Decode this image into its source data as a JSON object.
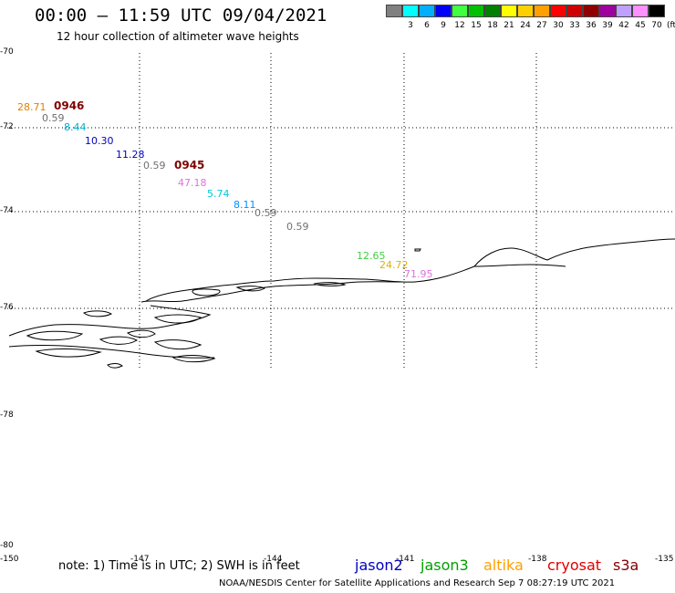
{
  "header": {
    "title": "00:00 – 11:59 UTC 09/04/2021",
    "subtitle": "12 hour collection of altimeter wave heights"
  },
  "legend": {
    "unit": "(ft)",
    "items": [
      {
        "label": "",
        "color": "#808080"
      },
      {
        "label": "3",
        "color": "#00ffff"
      },
      {
        "label": "6",
        "color": "#00b0ff"
      },
      {
        "label": "9",
        "color": "#0000ff"
      },
      {
        "label": "12",
        "color": "#40ff40"
      },
      {
        "label": "15",
        "color": "#00c000"
      },
      {
        "label": "18",
        "color": "#008000"
      },
      {
        "label": "21",
        "color": "#ffff00"
      },
      {
        "label": "24",
        "color": "#ffd000"
      },
      {
        "label": "27",
        "color": "#ffa000"
      },
      {
        "label": "30",
        "color": "#ff0000"
      },
      {
        "label": "33",
        "color": "#d00000"
      },
      {
        "label": "36",
        "color": "#900000"
      },
      {
        "label": "39",
        "color": "#a000a0"
      },
      {
        "label": "42",
        "color": "#c0a0ff"
      },
      {
        "label": "45",
        "color": "#ff90ff"
      },
      {
        "label": "70",
        "color": "#000000"
      }
    ]
  },
  "axes": {
    "lat_labels": [
      "-70",
      "-72",
      "-74",
      "-76",
      "-78",
      "-80"
    ],
    "lon_labels": [
      "-150",
      "-147",
      "-144",
      "-141",
      "-138",
      "-135"
    ]
  },
  "observations": [
    {
      "value": "28.71",
      "color": "#e08000"
    },
    {
      "value": "0.59",
      "color": "#707070"
    },
    {
      "value": "8.44",
      "color": "#00b0d0"
    },
    {
      "value": "10.30",
      "color": "#0000c0"
    },
    {
      "value": "11.28",
      "color": "#0000c0"
    },
    {
      "value": "0.59",
      "color": "#707070"
    },
    {
      "value": "47.18",
      "color": "#e070e0"
    },
    {
      "value": "5.74",
      "color": "#00c8d8"
    },
    {
      "value": "8.11",
      "color": "#0090ff"
    },
    {
      "value": "0.59",
      "color": "#707070"
    },
    {
      "value": "0.59",
      "color": "#707070"
    },
    {
      "value": "12.65",
      "color": "#40d040"
    },
    {
      "value": "24.72",
      "color": "#e0b000"
    },
    {
      "value": "71.95",
      "color": "#e070e0"
    }
  ],
  "time_labels": [
    "0946",
    "0945"
  ],
  "note": "note: 1) Time is in UTC; 2) SWH is in feet",
  "satellites": [
    {
      "name": "jason2",
      "color": "#0000c0"
    },
    {
      "name": "jason3",
      "color": "#00a000"
    },
    {
      "name": "altika",
      "color": "#ffa000"
    },
    {
      "name": "cryosat",
      "color": "#e00000"
    },
    {
      "name": "s3a",
      "color": "#800000"
    }
  ],
  "footer": "NOAA/NESDIS Center for Satellite Applications and Research   Sep  7 08:27:19 UTC 2021"
}
